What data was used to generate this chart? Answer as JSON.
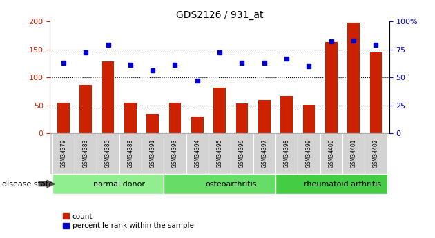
{
  "title": "GDS2126 / 931_at",
  "samples": [
    "GSM34379",
    "GSM34383",
    "GSM34385",
    "GSM34388",
    "GSM34391",
    "GSM34393",
    "GSM34394",
    "GSM34395",
    "GSM34396",
    "GSM34397",
    "GSM34398",
    "GSM34399",
    "GSM34400",
    "GSM34401",
    "GSM34402"
  ],
  "counts": [
    55,
    86,
    129,
    54,
    35,
    55,
    30,
    82,
    53,
    60,
    67,
    51,
    163,
    198,
    144
  ],
  "percentiles": [
    63,
    72,
    79,
    61,
    56,
    61,
    47,
    72,
    63,
    63,
    67,
    60,
    82,
    83,
    79
  ],
  "groups": [
    {
      "label": "normal donor",
      "start": 0,
      "end": 5
    },
    {
      "label": "osteoarthritis",
      "start": 5,
      "end": 10
    },
    {
      "label": "rheumatoid arthritis",
      "start": 10,
      "end": 15
    }
  ],
  "group_colors": [
    "#90ee90",
    "#66dd66",
    "#44cc44"
  ],
  "bar_color": "#cc2200",
  "dot_color": "#0000cc",
  "ylim_left": [
    0,
    200
  ],
  "ylim_right": [
    0,
    100
  ],
  "yticks_left": [
    0,
    50,
    100,
    150,
    200
  ],
  "yticks_right": [
    0,
    25,
    50,
    75,
    100
  ],
  "ytick_labels_right": [
    "0",
    "25",
    "50",
    "75",
    "100%"
  ],
  "background_color": "#ffffff",
  "legend_items": [
    "count",
    "percentile rank within the sample"
  ],
  "disease_state_label": "disease state",
  "tick_label_color_left": "#cc2200",
  "tick_label_color_right": "#0000cc",
  "sample_box_color": "#d3d3d3",
  "sample_box_edge": "#aaaaaa"
}
